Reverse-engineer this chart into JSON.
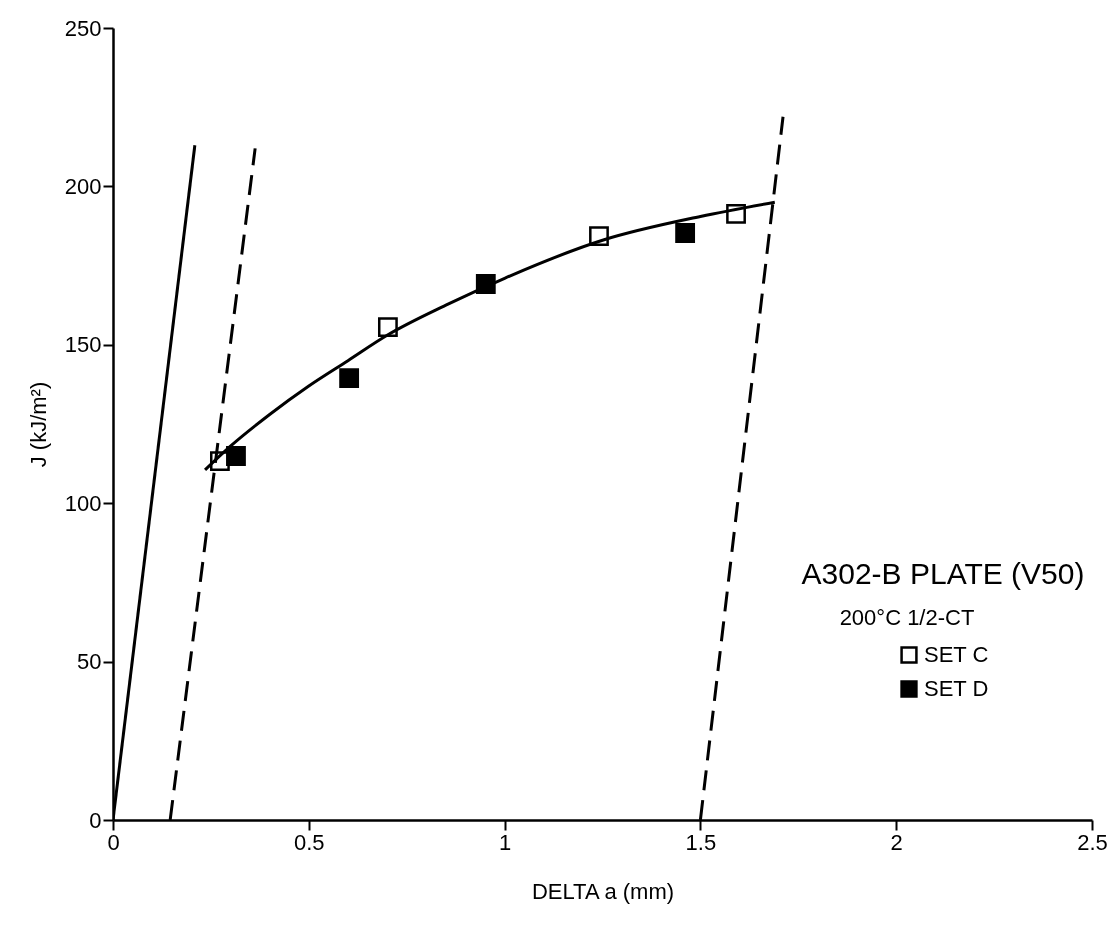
{
  "chart_data": {
    "type": "scatter",
    "xlabel": "DELTA a (mm)",
    "ylabel": "J (kJ/m²)",
    "legend_title": "A302-B PLATE (V50)",
    "annotations": [
      "200°C 1/2-CT"
    ],
    "xlim": [
      0,
      2.5
    ],
    "ylim": [
      0,
      250
    ],
    "xticks": [
      0,
      0.5,
      1,
      1.5,
      2,
      2.5
    ],
    "yticks": [
      0,
      50,
      100,
      150,
      200,
      250
    ],
    "grid": false,
    "legend": "bottom right",
    "series": [
      {
        "name": "SET C",
        "color": "#ffffff",
        "marker": "square",
        "x": [
          0.273,
          0.702,
          1.241,
          1.591
        ],
        "values": [
          113.3,
          155.6,
          184.3,
          191.3
        ]
      },
      {
        "name": "SET D",
        "color": "#000000",
        "marker": "square",
        "x": [
          0.314,
          0.603,
          0.952,
          1.461
        ],
        "values": [
          114.9,
          139.5,
          169.2,
          185.3
        ]
      },
      {
        "type": "line",
        "color": "#000000",
        "line_style": "solid",
        "x": [
          0,
          0.209
        ],
        "values": [
          0,
          213
        ]
      },
      {
        "type": "line",
        "color": "#000000",
        "line_style": "dashed",
        "x": [
          0.146,
          0.363
        ],
        "values": [
          0,
          212
        ]
      },
      {
        "type": "line",
        "color": "#000000",
        "line_style": "dashed",
        "x": [
          1.5,
          1.711
        ],
        "values": [
          0,
          222
        ]
      },
      {
        "type": "line",
        "color": "#000000",
        "line_style": "solid",
        "x": [
          0.235,
          0.3,
          0.4,
          0.5,
          0.6,
          0.7,
          0.85,
          1.0,
          1.25,
          1.5,
          1.69
        ],
        "values": [
          110.5,
          118,
          128,
          137,
          145,
          153,
          162.5,
          171,
          183,
          190.5,
          195
        ]
      }
    ]
  }
}
